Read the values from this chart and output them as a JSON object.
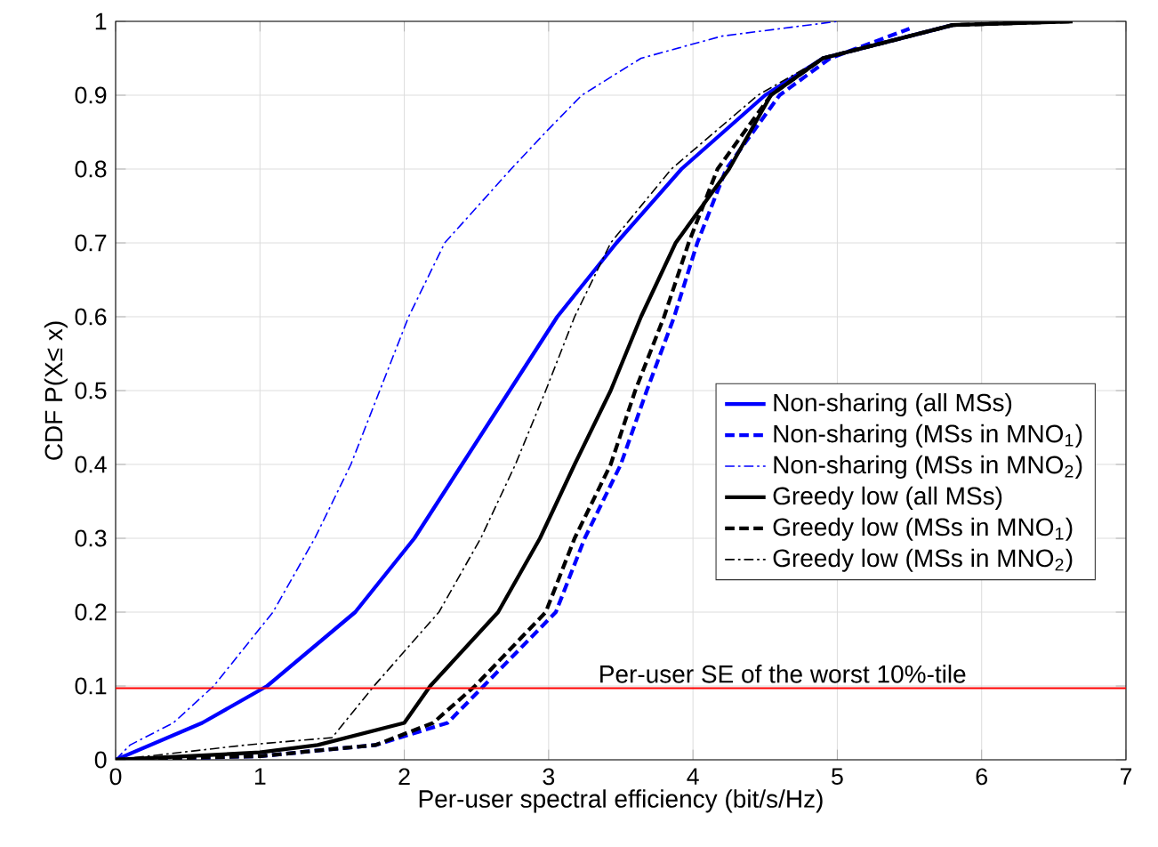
{
  "chart_data": {
    "type": "line",
    "xlabel": "Per-user spectral efficiency (bit/s/Hz)",
    "ylabel": "CDF P(X≤ x)",
    "xlim": [
      0,
      7
    ],
    "ylim": [
      0,
      1
    ],
    "xticks": [
      0,
      1,
      2,
      3,
      4,
      5,
      6,
      7
    ],
    "yticks": [
      0,
      0.1,
      0.2,
      0.3,
      0.4,
      0.5,
      0.6,
      0.7,
      0.8,
      0.9,
      1
    ],
    "grid": true,
    "legend": "right",
    "marker": "none",
    "series": [
      {
        "name": "Non-sharing (all MSs)",
        "color": "#0000ff",
        "line_style": "solid",
        "x": [
          0,
          0.6,
          1.05,
          1.66,
          2.07,
          2.4,
          2.73,
          3.06,
          3.47,
          3.92,
          4.5,
          4.9,
          5.8
        ],
        "values": [
          0,
          0.05,
          0.1,
          0.2,
          0.3,
          0.4,
          0.5,
          0.6,
          0.7,
          0.8,
          0.9,
          0.95,
          0.995
        ]
      },
      {
        "name": "Non-sharing (MSs in MNO$_{1}$)",
        "color": "#0000ff",
        "line_style": "dashed",
        "x": [
          0,
          1.0,
          1.8,
          2.3,
          2.55,
          3.05,
          3.25,
          3.5,
          3.68,
          3.87,
          4.03,
          4.23,
          4.6,
          4.95,
          5.5
        ],
        "values": [
          0,
          0.005,
          0.02,
          0.05,
          0.1,
          0.2,
          0.3,
          0.4,
          0.5,
          0.6,
          0.7,
          0.8,
          0.9,
          0.95,
          0.99
        ]
      },
      {
        "name": "Non-sharing (MSs in MNO$_{2}$)",
        "color": "#0000ff",
        "line_style": "dashdot",
        "x": [
          0,
          0.1,
          0.4,
          0.68,
          1.09,
          1.38,
          1.63,
          1.83,
          2.03,
          2.28,
          2.74,
          2.98,
          3.23,
          3.64,
          4.2,
          5.0
        ],
        "values": [
          0,
          0.02,
          0.05,
          0.1,
          0.2,
          0.3,
          0.4,
          0.5,
          0.6,
          0.7,
          0.8,
          0.85,
          0.9,
          0.95,
          0.98,
          1
        ]
      },
      {
        "name": "Greedy low (all MSs)",
        "color": "#000000",
        "line_style": "solid",
        "x": [
          0,
          1.0,
          1.4,
          2.0,
          2.18,
          2.65,
          2.94,
          3.18,
          3.43,
          3.64,
          3.88,
          4.25,
          4.54,
          4.9,
          5.8,
          6.63
        ],
        "values": [
          0,
          0.01,
          0.02,
          0.05,
          0.1,
          0.2,
          0.3,
          0.4,
          0.5,
          0.6,
          0.7,
          0.8,
          0.9,
          0.95,
          0.995,
          1
        ]
      },
      {
        "name": "Greedy low (MSs in MNO$_{1}$)",
        "color": "#000000",
        "line_style": "dashed",
        "x": [
          0,
          1.0,
          1.8,
          2.2,
          2.49,
          2.98,
          3.18,
          3.43,
          3.6,
          3.8,
          3.97,
          4.17,
          4.54,
          4.9,
          5.8,
          6.63
        ],
        "values": [
          0,
          0.005,
          0.02,
          0.05,
          0.1,
          0.2,
          0.3,
          0.4,
          0.5,
          0.6,
          0.7,
          0.8,
          0.9,
          0.95,
          0.995,
          1
        ]
      },
      {
        "name": "Greedy low (MSs in MNO$_{2}$)",
        "color": "#000000",
        "line_style": "dashdot",
        "x": [
          0,
          0.9,
          1.5,
          1.79,
          2.24,
          2.53,
          2.77,
          2.98,
          3.18,
          3.43,
          3.85,
          4.45,
          4.9,
          5.8,
          6.6
        ],
        "values": [
          0,
          0.02,
          0.03,
          0.1,
          0.2,
          0.3,
          0.4,
          0.5,
          0.6,
          0.7,
          0.8,
          0.9,
          0.95,
          0.995,
          1
        ]
      }
    ],
    "ref_lines": [
      {
        "axis": "y",
        "value": 0.097,
        "label": "Per-user SE of the worst 10%-tile",
        "color": "#ff0000"
      }
    ]
  }
}
